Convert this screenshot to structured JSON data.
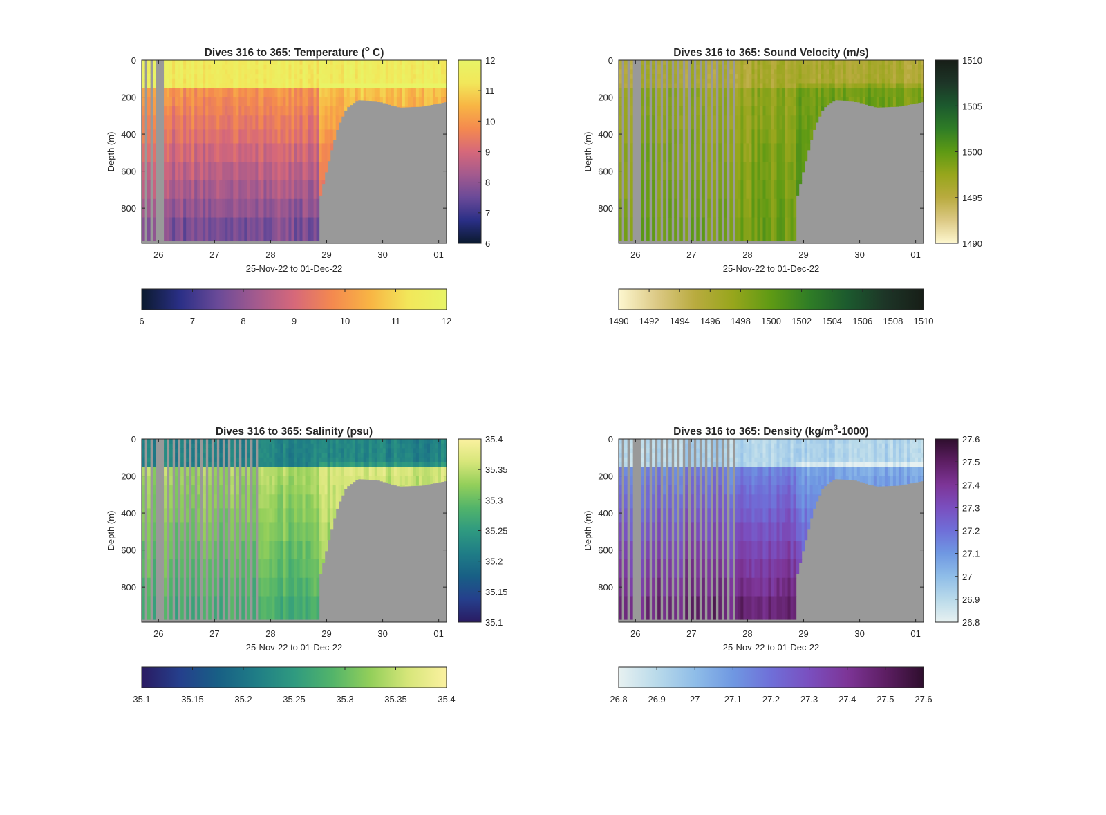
{
  "figure": {
    "background": "#ffffff",
    "terrain_color": "#999999",
    "axis_color": "#262626"
  },
  "chart_data": [
    {
      "type": "heatmap",
      "title_main": "Dives 316 to 365: Temperature (",
      "title_sup": "o",
      "title_end": " C)",
      "xlabel": "25-Nov-22 to 01-Dec-22",
      "ylabel": "Depth (m)",
      "x_ticks": [
        "26",
        "27",
        "28",
        "29",
        "30",
        "01"
      ],
      "xlim_days": [
        25.7,
        31.14
      ],
      "y_ticks": [
        "0",
        "200",
        "400",
        "600",
        "800"
      ],
      "ylim": [
        0,
        990
      ],
      "clim": [
        6,
        12
      ],
      "colormap": [
        "#0b1a2e",
        "#2a2f86",
        "#6a4a98",
        "#a35a8e",
        "#d6687a",
        "#f4894f",
        "#f8b544",
        "#f2e75a",
        "#e8f466"
      ],
      "side_colorbar_ticks": [
        "12",
        "11",
        "10",
        "9",
        "8",
        "7",
        "6"
      ],
      "bottom_colorbar_ticks": [
        "6",
        "7",
        "8",
        "9",
        "10",
        "11",
        "12"
      ],
      "profile": {
        "surface": 11.5,
        "thermocline_depth": 150,
        "below": 10.0,
        "deep": 7.5
      },
      "shelf_start": 28.85,
      "gappy_until": 26.15,
      "nodata_day_range": [
        26.0,
        26.12
      ]
    },
    {
      "type": "heatmap",
      "title_main": "Dives 316 to 365: Sound Velocity (m/s)",
      "title_sup": "",
      "title_end": "",
      "xlabel": "25-Nov-22 to 01-Dec-22",
      "ylabel": "Depth (m)",
      "x_ticks": [
        "26",
        "27",
        "28",
        "29",
        "30",
        "01"
      ],
      "xlim_days": [
        25.7,
        31.14
      ],
      "y_ticks": [
        "0",
        "200",
        "400",
        "600",
        "800"
      ],
      "ylim": [
        0,
        990
      ],
      "clim": [
        1490,
        1510
      ],
      "colormap": [
        "#fdf7cf",
        "#dcc985",
        "#b9ab3f",
        "#97a61c",
        "#5e9a14",
        "#2f7d26",
        "#1c5a2e",
        "#1d3527",
        "#171e17"
      ],
      "side_colorbar_ticks": [
        "1510",
        "1505",
        "1500",
        "1495",
        "1490"
      ],
      "bottom_colorbar_ticks": [
        "1490",
        "1492",
        "1494",
        "1496",
        "1498",
        "1500",
        "1502",
        "1504",
        "1506",
        "1508",
        "1510"
      ],
      "profile": {
        "surface": 1496.0,
        "thermocline_depth": 150,
        "below": 1497.5,
        "deep": 1499.5
      },
      "shelf_start": 28.85,
      "gappy_until": 27.8,
      "nodata_day_range": [
        26.0,
        26.12
      ]
    },
    {
      "type": "heatmap",
      "title_main": "Dives 316 to 365: Salinity (psu)",
      "title_sup": "",
      "title_end": "",
      "xlabel": "25-Nov-22 to 01-Dec-22",
      "ylabel": "Depth (m)",
      "x_ticks": [
        "26",
        "27",
        "28",
        "29",
        "30",
        "01"
      ],
      "xlim_days": [
        25.7,
        31.14
      ],
      "y_ticks": [
        "0",
        "200",
        "400",
        "600",
        "800"
      ],
      "ylim": [
        0,
        990
      ],
      "clim": [
        35.1,
        35.4
      ],
      "colormap": [
        "#2a1b62",
        "#253f8c",
        "#185f85",
        "#1f7d86",
        "#2f9a80",
        "#52b46a",
        "#93cf5a",
        "#d7e67a",
        "#fbf1a0"
      ],
      "side_colorbar_ticks": [
        "35.4",
        "35.35",
        "35.3",
        "35.25",
        "35.2",
        "35.15",
        "35.1"
      ],
      "bottom_colorbar_ticks": [
        "35.1",
        "35.15",
        "35.2",
        "35.25",
        "35.3",
        "35.35",
        "35.4"
      ],
      "profile": {
        "surface": 35.22,
        "thermocline_depth": 150,
        "below": 35.34,
        "deep": 35.27
      },
      "shelf_start": 28.85,
      "gappy_until": 27.8,
      "nodata_day_range": [
        26.0,
        26.12
      ]
    },
    {
      "type": "heatmap",
      "title_main": "Dives 316 to 365: Density (kg/m",
      "title_sup": "3",
      "title_end": "-1000)",
      "xlabel": "25-Nov-22 to 01-Dec-22",
      "ylabel": "Depth (m)",
      "x_ticks": [
        "26",
        "27",
        "28",
        "29",
        "30",
        "01"
      ],
      "xlim_days": [
        25.7,
        31.14
      ],
      "y_ticks": [
        "0",
        "200",
        "400",
        "600",
        "800"
      ],
      "ylim": [
        0,
        990
      ],
      "clim": [
        26.8,
        27.6
      ],
      "colormap": [
        "#e7f1f1",
        "#b9daea",
        "#8fbde8",
        "#6f98e2",
        "#6f6fd8",
        "#7a4fbf",
        "#7d3597",
        "#5d1e63",
        "#2e0e2d"
      ],
      "side_colorbar_ticks": [
        "27.6",
        "27.5",
        "27.4",
        "27.3",
        "27.2",
        "27.1",
        "27",
        "26.9",
        "26.8"
      ],
      "bottom_colorbar_ticks": [
        "26.8",
        "26.9",
        "27",
        "27.1",
        "27.2",
        "27.3",
        "27.4",
        "27.5",
        "27.6"
      ],
      "profile": {
        "surface": 26.92,
        "thermocline_depth": 150,
        "below": 27.15,
        "deep": 27.5
      },
      "shelf_start": 28.85,
      "gappy_until": 27.8,
      "nodata_day_range": [
        26.0,
        26.12
      ]
    }
  ]
}
